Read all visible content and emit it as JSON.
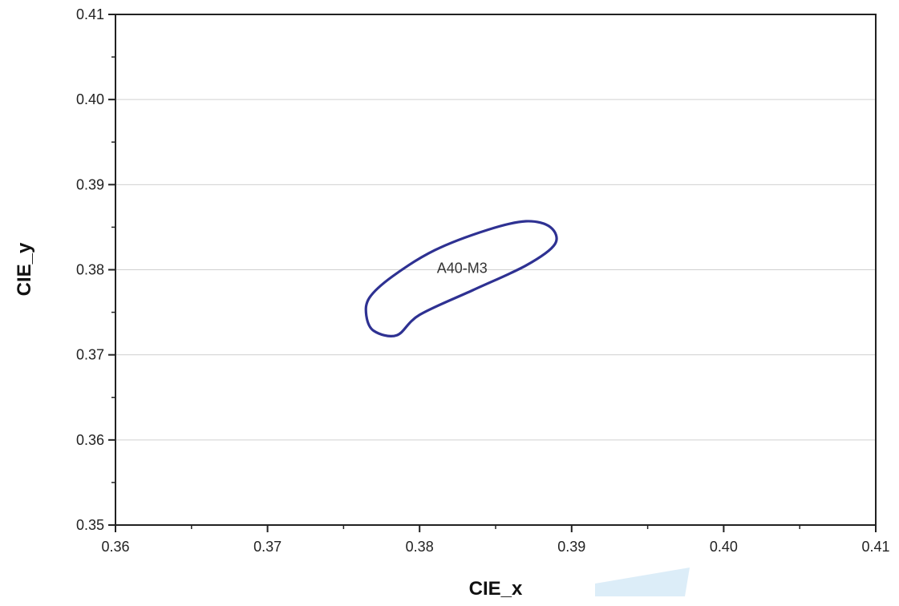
{
  "chart_data": {
    "type": "scatter",
    "title": "",
    "xlabel": "CIE_x",
    "ylabel": "CIE_y",
    "xlim": [
      0.36,
      0.41
    ],
    "ylim": [
      0.35,
      0.41
    ],
    "x_ticks": [
      "0.36",
      "0.37",
      "0.38",
      "0.39",
      "0.40",
      "0.41"
    ],
    "y_ticks": [
      "0.35",
      "0.36",
      "0.37",
      "0.38",
      "0.39",
      "0.40",
      "0.41"
    ],
    "grid": "horizontal",
    "series": [
      {
        "shape": "ellipse",
        "color": "#2e3192",
        "center": [
          0.3828,
          0.3803
        ],
        "points": [
          [
            0.3765,
            0.3746
          ],
          [
            0.3767,
            0.3767
          ],
          [
            0.3782,
            0.3792
          ],
          [
            0.381,
            0.3823
          ],
          [
            0.3845,
            0.3847
          ],
          [
            0.387,
            0.3857
          ],
          [
            0.3886,
            0.385
          ],
          [
            0.3889,
            0.383
          ],
          [
            0.387,
            0.3805
          ],
          [
            0.3835,
            0.3776
          ],
          [
            0.38,
            0.3747
          ],
          [
            0.3785,
            0.3723
          ],
          [
            0.377,
            0.3728
          ],
          [
            0.3765,
            0.3746
          ]
        ]
      }
    ],
    "annotations": [
      {
        "text": "A40-M3",
        "x": 0.3828,
        "y": 0.3803
      }
    ]
  }
}
